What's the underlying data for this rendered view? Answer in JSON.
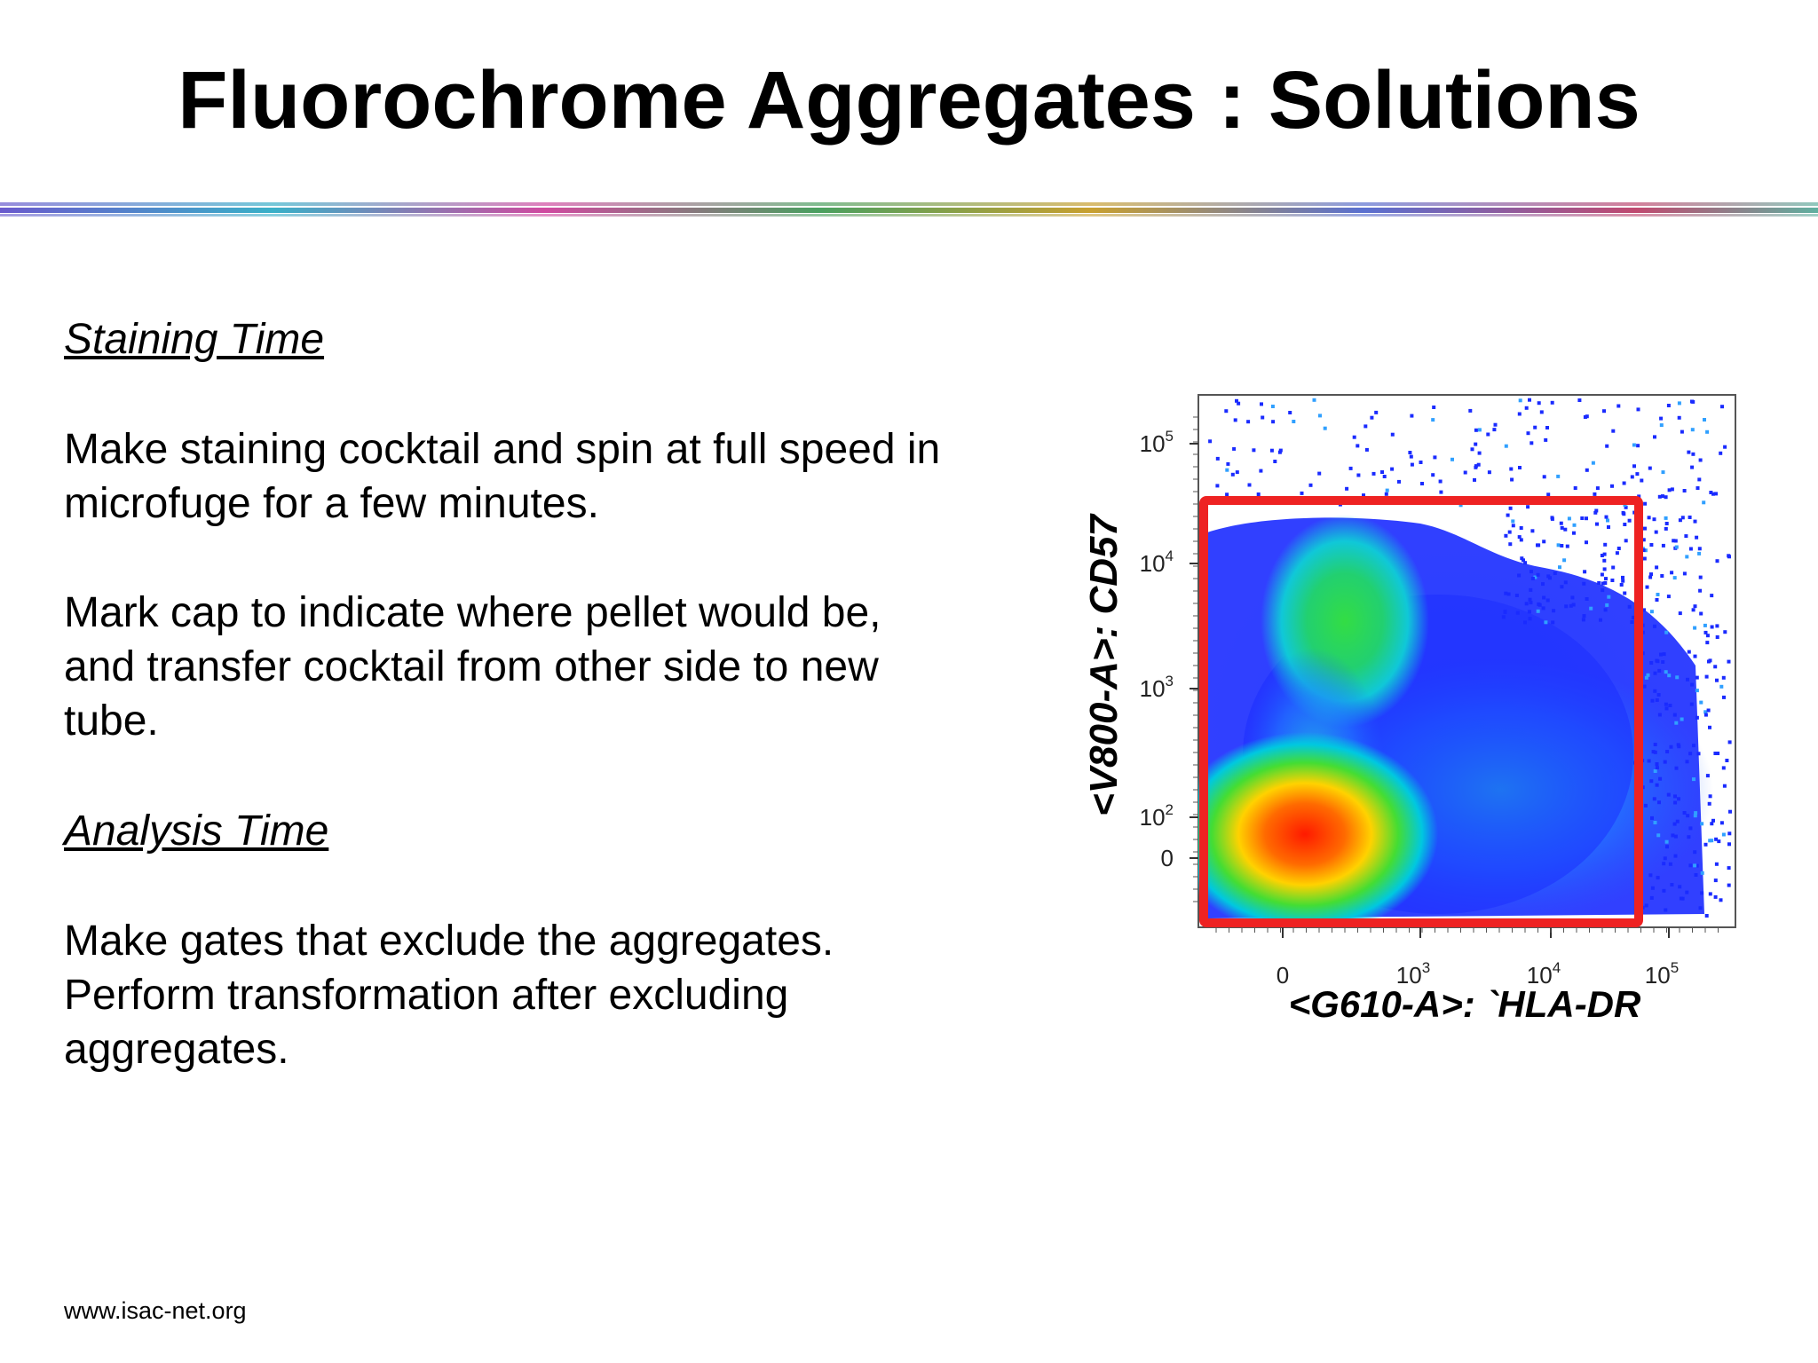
{
  "slide": {
    "title": "Fluorochrome Aggregates : Solutions",
    "footer": "www.isac-net.org"
  },
  "sections": {
    "staining": {
      "heading": "Staining Time",
      "para1_line1": "Make staining cocktail and spin at full speed in",
      "para1_line2": "microfuge for a few minutes.",
      "para2_line1": "Mark cap to indicate where pellet would be,",
      "para2_line2": "and transfer cocktail from other side to new",
      "para2_line3": "tube."
    },
    "analysis": {
      "heading": "Analysis Time",
      "para1": "Make gates that exclude the aggregates.",
      "para2_line1": "Perform transformation after excluding",
      "para2_line2": "aggregates."
    }
  },
  "colors": {
    "gate": "#ee2222",
    "density_low": "#1a2bff",
    "density_mid": "#22cc55",
    "density_high": "#ff2200"
  },
  "chart_data": {
    "type": "scatter",
    "xlabel": "<G610-A>: `HLA-DR",
    "ylabel": "<V800-A>: CD57",
    "x_ticks": [
      {
        "base": "0",
        "exp": ""
      },
      {
        "base": "10",
        "exp": "3"
      },
      {
        "base": "10",
        "exp": "4"
      },
      {
        "base": "10",
        "exp": "5"
      }
    ],
    "y_ticks": [
      {
        "base": "10",
        "exp": "5"
      },
      {
        "base": "10",
        "exp": "4"
      },
      {
        "base": "10",
        "exp": "3"
      },
      {
        "base": "10",
        "exp": "2"
      },
      {
        "base": "0",
        "exp": ""
      }
    ],
    "scale": "biexponential",
    "populations": [
      {
        "x": 500,
        "y": 80,
        "density": "high"
      },
      {
        "x": 600,
        "y": 5000,
        "density": "medium"
      },
      {
        "x": 20000,
        "y": 400,
        "density": "low"
      }
    ],
    "gate": {
      "shape": "rectangle",
      "x_range": [
        -300,
        45000
      ],
      "y_range": [
        -300,
        30000
      ]
    }
  }
}
